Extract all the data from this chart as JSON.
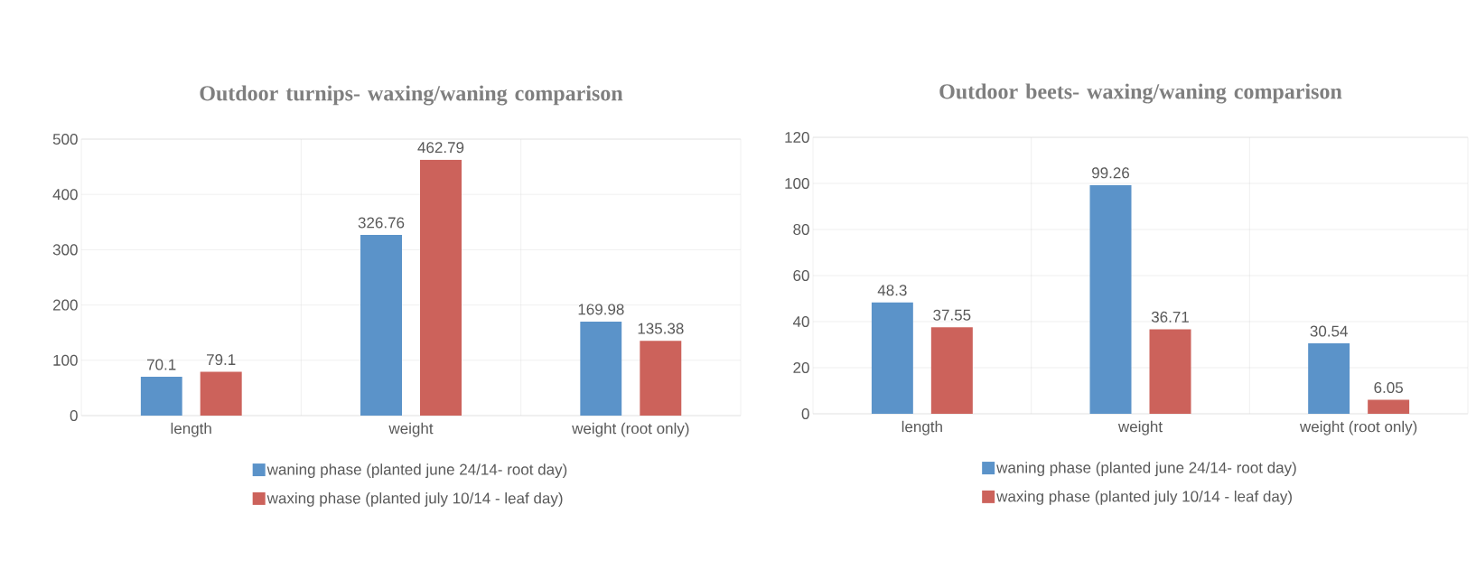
{
  "chart_data": [
    {
      "type": "bar",
      "title": "Outdoor turnips- waxing/waning comparison",
      "categories": [
        "length",
        "weight",
        "weight (root only)"
      ],
      "series": [
        {
          "name": "waning phase (planted june 24/14- root day)",
          "color": "#5b93c9",
          "values": [
            70.1,
            326.76,
            169.98
          ]
        },
        {
          "name": "waxing phase (planted july 10/14 - leaf day)",
          "color": "#cc625b",
          "values": [
            79.1,
            462.79,
            135.38
          ]
        }
      ],
      "ylim": [
        0,
        500
      ],
      "yticks": [
        0,
        100,
        200,
        300,
        400,
        500
      ],
      "grid": true,
      "legend": "bottom",
      "data_labels": true
    },
    {
      "type": "bar",
      "title": "Outdoor beets- waxing/waning comparison",
      "categories": [
        "length",
        "weight",
        "weight (root only)"
      ],
      "series": [
        {
          "name": "waning phase (planted june 24/14- root day)",
          "color": "#5b93c9",
          "values": [
            48.3,
            99.26,
            30.54
          ]
        },
        {
          "name": "waxing phase (planted july 10/14 - leaf day)",
          "color": "#cc625b",
          "values": [
            37.55,
            36.71,
            6.05
          ]
        }
      ],
      "ylim": [
        0,
        120
      ],
      "yticks": [
        0,
        20,
        40,
        60,
        80,
        100,
        120
      ],
      "grid": true,
      "legend": "bottom",
      "data_labels": true
    }
  ]
}
